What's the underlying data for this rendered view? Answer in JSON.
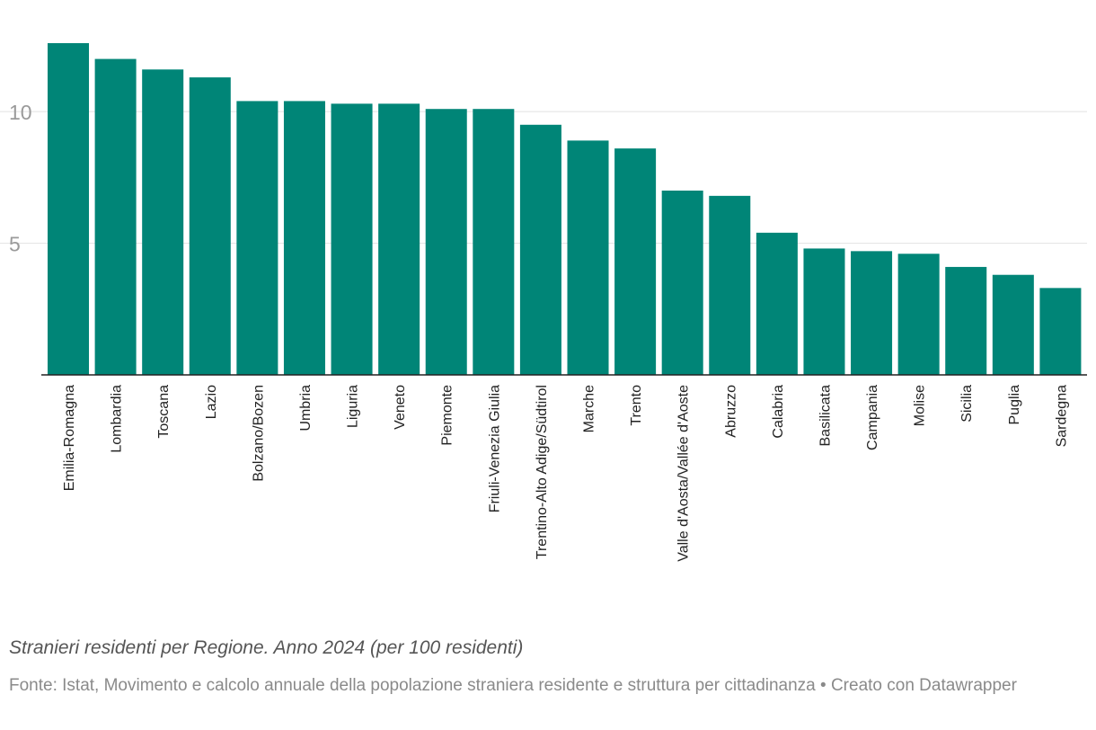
{
  "chart_data": {
    "type": "bar",
    "categories": [
      "Emilia-Romagna",
      "Lombardia",
      "Toscana",
      "Lazio",
      "Bolzano/Bozen",
      "Umbria",
      "Liguria",
      "Veneto",
      "Piemonte",
      "Friuli-Venezia Giulia",
      "Trentino-Alto Adige/Südtirol",
      "Marche",
      "Trento",
      "Valle d'Aosta/Vallée d'Aoste",
      "Abruzzo",
      "Calabria",
      "Basilicata",
      "Campania",
      "Molise",
      "Sicilia",
      "Puglia",
      "Sardegna"
    ],
    "values": [
      12.6,
      12.0,
      11.6,
      11.3,
      10.4,
      10.4,
      10.3,
      10.3,
      10.1,
      10.1,
      9.5,
      8.9,
      8.6,
      7.0,
      6.8,
      5.4,
      4.8,
      4.7,
      4.6,
      4.1,
      3.8,
      3.3
    ],
    "yticks": [
      5,
      10
    ],
    "ylim": [
      0,
      12.6
    ],
    "bar_color": "#008577",
    "grid": true,
    "title": "",
    "xlabel": "",
    "ylabel": ""
  },
  "caption": {
    "subtitle": "Stranieri residenti per Regione. Anno 2024 (per 100 residenti)",
    "source": "Fonte: Istat, Movimento e calcolo annuale della popolazione straniera residente e struttura per cittadinanza • Creato con Datawrapper"
  }
}
